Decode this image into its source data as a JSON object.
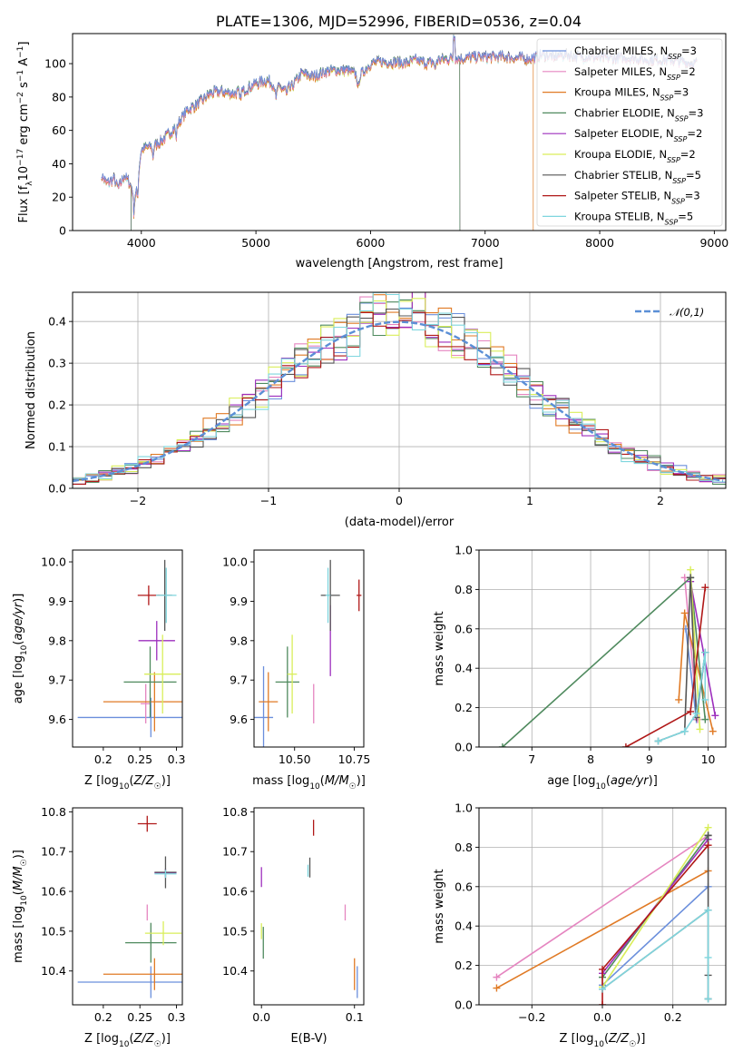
{
  "title": "PLATE=1306, MJD=52996, FIBERID=0536, z=0.04",
  "colors": {
    "Chabrier MILES": "#6b8fdc",
    "Salpeter MILES": "#e585c0",
    "Kroupa MILES": "#e07a25",
    "Chabrier ELODIE": "#4f8a5e",
    "Salpeter ELODIE": "#9d2fbd",
    "Kroupa ELODIE": "#d9ee5a",
    "Chabrier STELIB": "#555555",
    "Salpeter STELIB": "#b01818",
    "Kroupa STELIB": "#7fd6de",
    "normal": "#5b8fd6"
  },
  "chart_data": [
    {
      "id": "spectrum",
      "type": "line",
      "xlabel": "wavelength [Angstrom, rest frame]",
      "ylabel": "Flux [f_λ 10^-17 erg cm^-2 s^-1 A^-1]",
      "xlim": [
        3400,
        9100
      ],
      "ylim": [
        0,
        118
      ],
      "xticks": [
        "4000",
        "5000",
        "6000",
        "7000",
        "8000",
        "9000"
      ],
      "yticks": [
        "0",
        "20",
        "40",
        "60",
        "80",
        "100"
      ],
      "legend_position": "top-right",
      "series": [
        {
          "name": "Chabrier MILES, N_SSP=3",
          "key": "Chabrier MILES",
          "x_range": [
            3650,
            8850
          ]
        },
        {
          "name": "Salpeter MILES, N_SSP=2",
          "key": "Salpeter MILES",
          "x_range": [
            3650,
            8850
          ]
        },
        {
          "name": "Kroupa MILES, N_SSP=3",
          "key": "Kroupa MILES",
          "x_range": [
            3650,
            7420
          ]
        },
        {
          "name": "Chabrier ELODIE, N_SSP=3",
          "key": "Chabrier ELODIE",
          "x_range": [
            3910,
            6780
          ]
        },
        {
          "name": "Salpeter ELODIE, N_SSP=2",
          "key": "Salpeter ELODIE",
          "x_range": [
            3910,
            6780
          ]
        },
        {
          "name": "Kroupa ELODIE, N_SSP=2",
          "key": "Kroupa ELODIE",
          "x_range": [
            3910,
            6780
          ]
        },
        {
          "name": "Chabrier STELIB, N_SSP=5",
          "key": "Chabrier STELIB",
          "x_range": [
            3650,
            8850
          ]
        },
        {
          "name": "Salpeter STELIB, N_SSP=3",
          "key": "Salpeter STELIB",
          "x_range": [
            3650,
            8850
          ]
        },
        {
          "name": "Kroupa STELIB, N_SSP=5",
          "key": "Kroupa STELIB",
          "x_range": [
            3650,
            8850
          ]
        }
      ],
      "continuum": {
        "x": [
          3650,
          3700,
          3760,
          3800,
          3850,
          3900,
          3950,
          4000,
          4050,
          4100,
          4200,
          4300,
          4400,
          4500,
          4600,
          4700,
          4800,
          4900,
          5000,
          5100,
          5200,
          5300,
          5400,
          5500,
          5600,
          5700,
          5800,
          5900,
          6000,
          6100,
          6200,
          6300,
          6400,
          6500,
          6600,
          6700,
          6800,
          6900,
          7000,
          7100,
          7200,
          7300,
          7400,
          7500,
          7600,
          7700,
          7800,
          7900,
          8000,
          8100,
          8200,
          8300,
          8400,
          8500,
          8600,
          8700,
          8800,
          8850
        ],
        "y": [
          33,
          28,
          31,
          25,
          33,
          28,
          20,
          48,
          50,
          50,
          55,
          62,
          72,
          76,
          82,
          83,
          82,
          84,
          88,
          90,
          85,
          85,
          94,
          92,
          95,
          96,
          96,
          92,
          100,
          101,
          101,
          100,
          102,
          100,
          102,
          103,
          103,
          104,
          104,
          104,
          104,
          103,
          103,
          105,
          104,
          105,
          104,
          104,
          103,
          103,
          103,
          103,
          102,
          102,
          102,
          101,
          100,
          100
        ]
      }
    },
    {
      "id": "residuals",
      "type": "line",
      "xlabel": "(data-model)/error",
      "ylabel": "Normed distribution",
      "xlim": [
        -2.5,
        2.5
      ],
      "ylim": [
        0,
        0.47
      ],
      "xticks": [
        "−2",
        "−1",
        "0",
        "1",
        "2"
      ],
      "yticks": [
        "0.0",
        "0.1",
        "0.2",
        "0.3",
        "0.4"
      ],
      "grid": true,
      "legend_position": "top-right",
      "reference_curve": {
        "name": "𝒩(0,1)",
        "mean": 0,
        "sigma": 1
      }
    },
    {
      "id": "age-vs-Z",
      "type": "scatter",
      "xlabel": "Z [log10(Z/Z☉)]",
      "ylabel": "age [log10(age/yr)]",
      "xlim": [
        0.158,
        0.308
      ],
      "ylim": [
        9.53,
        10.03
      ],
      "xticks": [
        "0.2",
        "0.25",
        "0.3"
      ],
      "yticks": [
        "9.6",
        "9.7",
        "9.8",
        "9.9",
        "10.0"
      ],
      "points": [
        {
          "key": "Chabrier MILES",
          "x": 0.265,
          "xerr": 0.1,
          "y": 9.605,
          "yerr": 0.05
        },
        {
          "key": "Salpeter MILES",
          "x": 0.258,
          "xerr": 0.007,
          "y": 9.64,
          "yerr": 0.05
        },
        {
          "key": "Kroupa MILES",
          "x": 0.27,
          "xerr": 0.07,
          "y": 9.645,
          "yerr": 0.075
        },
        {
          "key": "Chabrier ELODIE",
          "x": 0.264,
          "xerr": 0.036,
          "y": 9.695,
          "yerr": 0.09
        },
        {
          "key": "Salpeter ELODIE",
          "x": 0.273,
          "xerr": 0.025,
          "y": 9.8,
          "yerr": 0.05
        },
        {
          "key": "Kroupa ELODIE",
          "x": 0.281,
          "xerr": 0.025,
          "y": 9.715,
          "yerr": 0.1
        },
        {
          "key": "Chabrier STELIB",
          "x": 0.284,
          "xerr": 0.01,
          "y": 9.915,
          "yerr": 0.09
        },
        {
          "key": "Salpeter STELIB",
          "x": 0.262,
          "xerr": 0.015,
          "y": 9.915,
          "yerr": 0.025
        },
        {
          "key": "Kroupa STELIB",
          "x": 0.286,
          "xerr": 0.014,
          "y": 9.915,
          "yerr": 0.07
        }
      ]
    },
    {
      "id": "age-vs-mass",
      "type": "scatter",
      "xlabel": "mass [log10(M/M☉)]",
      "ylabel": "",
      "xlim": [
        10.33,
        10.79
      ],
      "ylim": [
        9.53,
        10.03
      ],
      "xticks": [
        "10.50",
        "10.75"
      ],
      "yticks": [
        "9.6",
        "9.7",
        "9.8",
        "9.9",
        "10.0"
      ],
      "points": [
        {
          "key": "Chabrier MILES",
          "x": 10.37,
          "xerr": 0.04,
          "y": 9.605,
          "yerr": 0.13
        },
        {
          "key": "Salpeter MILES",
          "x": 10.58,
          "xerr": 0.0,
          "y": 9.64,
          "yerr": 0.05
        },
        {
          "key": "Kroupa MILES",
          "x": 10.39,
          "xerr": 0.04,
          "y": 9.645,
          "yerr": 0.075
        },
        {
          "key": "Chabrier ELODIE",
          "x": 10.47,
          "xerr": 0.05,
          "y": 9.695,
          "yerr": 0.09
        },
        {
          "key": "Salpeter ELODIE",
          "x": 10.65,
          "xerr": 0.0,
          "y": 9.8,
          "yerr": 0.09
        },
        {
          "key": "Kroupa ELODIE",
          "x": 10.49,
          "xerr": 0.02,
          "y": 9.715,
          "yerr": 0.1
        },
        {
          "key": "Chabrier STELIB",
          "x": 10.65,
          "xerr": 0.04,
          "y": 9.915,
          "yerr": 0.09
        },
        {
          "key": "Salpeter STELIB",
          "x": 10.77,
          "xerr": 0.01,
          "y": 9.915,
          "yerr": 0.04
        },
        {
          "key": "Kroupa STELIB",
          "x": 10.64,
          "xerr": 0.01,
          "y": 9.915,
          "yerr": 0.07
        }
      ]
    },
    {
      "id": "massweight-vs-age",
      "type": "line",
      "xlabel": "age [log10(age/yr)]",
      "ylabel": "mass weight",
      "xlim": [
        6.1,
        10.3
      ],
      "ylim": [
        0,
        1
      ],
      "xticks": [
        "7",
        "8",
        "9",
        "10"
      ],
      "yticks": [
        "0.0",
        "0.2",
        "0.4",
        "0.6",
        "0.8",
        "1.0"
      ],
      "grid": true,
      "series": [
        {
          "key": "Chabrier MILES",
          "x": [
            9.62,
            9.8,
            9.95
          ],
          "y": [
            0.6,
            0.14,
            0.48
          ]
        },
        {
          "key": "Salpeter MILES",
          "x": [
            9.6,
            9.82
          ],
          "y": [
            0.86,
            0.14
          ]
        },
        {
          "key": "Kroupa MILES",
          "x": [
            9.5,
            9.6,
            10.08
          ],
          "y": [
            0.24,
            0.68,
            0.08
          ]
        },
        {
          "key": "Chabrier ELODIE",
          "x": [
            6.5,
            9.7,
            9.95
          ],
          "y": [
            0.0,
            0.86,
            0.14
          ]
        },
        {
          "key": "Salpeter ELODIE",
          "x": [
            9.7,
            10.12
          ],
          "y": [
            0.84,
            0.16
          ]
        },
        {
          "key": "Kroupa ELODIE",
          "x": [
            9.7,
            9.86
          ],
          "y": [
            0.9,
            0.09
          ]
        },
        {
          "key": "Chabrier STELIB",
          "x": [
            9.15,
            9.6,
            9.7,
            9.8,
            9.95
          ],
          "y": [
            0.03,
            0.08,
            0.86,
            0.15,
            0.48
          ]
        },
        {
          "key": "Salpeter STELIB",
          "x": [
            8.6,
            9.7,
            9.95
          ],
          "y": [
            0.0,
            0.18,
            0.81
          ]
        },
        {
          "key": "Kroupa STELIB",
          "x": [
            9.15,
            9.6,
            9.8,
            9.95,
            9.95
          ],
          "y": [
            0.03,
            0.08,
            0.17,
            0.48,
            0.24
          ]
        }
      ]
    },
    {
      "id": "mass-vs-Z",
      "type": "scatter",
      "xlabel": "Z [log10(Z/Z☉)]",
      "ylabel": "mass [log10(M/M☉)]",
      "xlim": [
        0.158,
        0.308
      ],
      "ylim": [
        10.315,
        10.81
      ],
      "xticks": [
        "0.2",
        "0.25",
        "0.3"
      ],
      "yticks": [
        "10.4",
        "10.5",
        "10.6",
        "10.7",
        "10.8"
      ],
      "points": [
        {
          "key": "Chabrier MILES",
          "x": 0.265,
          "xerr": 0.1,
          "y": 10.372,
          "yerr": 0.04
        },
        {
          "key": "Salpeter MILES",
          "x": 0.26,
          "xerr": 0.0,
          "y": 10.547,
          "yerr": 0.02
        },
        {
          "key": "Kroupa MILES",
          "x": 0.27,
          "xerr": 0.07,
          "y": 10.392,
          "yerr": 0.04
        },
        {
          "key": "Chabrier ELODIE",
          "x": 0.265,
          "xerr": 0.035,
          "y": 10.471,
          "yerr": 0.05
        },
        {
          "key": "Salpeter ELODIE",
          "x": 0.285,
          "xerr": 0.015,
          "y": 10.647,
          "yerr": 0.01
        },
        {
          "key": "Kroupa ELODIE",
          "x": 0.282,
          "xerr": 0.025,
          "y": 10.495,
          "yerr": 0.03
        },
        {
          "key": "Chabrier STELIB",
          "x": 0.285,
          "xerr": 0.015,
          "y": 10.648,
          "yerr": 0.04
        },
        {
          "key": "Salpeter STELIB",
          "x": 0.26,
          "xerr": 0.013,
          "y": 10.77,
          "yerr": 0.02
        },
        {
          "key": "Kroupa STELIB",
          "x": 0.285,
          "xerr": 0.015,
          "y": 10.644,
          "yerr": 0.01
        }
      ]
    },
    {
      "id": "mass-vs-EBV",
      "type": "scatter",
      "xlabel": "E(B-V)",
      "ylabel": "",
      "xlim": [
        -0.008,
        0.11
      ],
      "ylim": [
        10.315,
        10.81
      ],
      "xticks": [
        "0.0",
        "0.1"
      ],
      "yticks": [
        "10.4",
        "10.5",
        "10.6",
        "10.7",
        "10.8"
      ],
      "points": [
        {
          "key": "Chabrier MILES",
          "x": 0.103,
          "y": 10.372,
          "yerr": 0.04
        },
        {
          "key": "Salpeter MILES",
          "x": 0.09,
          "y": 10.547,
          "yerr": 0.02
        },
        {
          "key": "Kroupa MILES",
          "x": 0.1,
          "y": 10.392,
          "yerr": 0.04
        },
        {
          "key": "Chabrier ELODIE",
          "x": 0.002,
          "y": 10.471,
          "yerr": 0.04
        },
        {
          "key": "Salpeter ELODIE",
          "x": 0.0,
          "y": 10.636,
          "yerr": 0.025
        },
        {
          "key": "Kroupa ELODIE",
          "x": 0.0,
          "y": 10.5,
          "yerr": 0.02
        },
        {
          "key": "Chabrier STELIB",
          "x": 0.052,
          "y": 10.66,
          "yerr": 0.025
        },
        {
          "key": "Salpeter STELIB",
          "x": 0.056,
          "y": 10.76,
          "yerr": 0.02
        },
        {
          "key": "Kroupa STELIB",
          "x": 0.05,
          "y": 10.652,
          "yerr": 0.015
        }
      ]
    },
    {
      "id": "massweight-vs-Z",
      "type": "line",
      "xlabel": "Z [log10(Z/Z☉)]",
      "ylabel": "mass weight",
      "xlim": [
        -0.35,
        0.35
      ],
      "ylim": [
        0,
        1
      ],
      "xticks": [
        "−0.2",
        "0.0",
        "0.2"
      ],
      "yticks": [
        "0.0",
        "0.2",
        "0.4",
        "0.6",
        "0.8",
        "1.0"
      ],
      "grid": true,
      "series": [
        {
          "key": "Chabrier MILES",
          "x": [
            0.0,
            0.3
          ],
          "y": [
            0.1,
            0.6
          ]
        },
        {
          "key": "Salpeter MILES",
          "x": [
            -0.3,
            0.3
          ],
          "y": [
            0.14,
            0.86
          ]
        },
        {
          "key": "Kroupa MILES",
          "x": [
            -0.3,
            0.3
          ],
          "y": [
            0.085,
            0.68
          ]
        },
        {
          "key": "Chabrier ELODIE",
          "x": [
            0.0,
            0.3
          ],
          "y": [
            0.14,
            0.86
          ]
        },
        {
          "key": "Salpeter ELODIE",
          "x": [
            0.0,
            0.3
          ],
          "y": [
            0.16,
            0.84
          ]
        },
        {
          "key": "Kroupa ELODIE",
          "x": [
            0.0,
            0.3
          ],
          "y": [
            0.09,
            0.9
          ]
        },
        {
          "key": "Chabrier STELIB",
          "x": [
            0.0,
            0.3,
            0.3,
            0.3,
            0.3
          ],
          "y": [
            0.08,
            0.48,
            0.86,
            0.03,
            0.15
          ]
        },
        {
          "key": "Salpeter STELIB",
          "x": [
            0.0,
            0.0,
            0.3
          ],
          "y": [
            0.0,
            0.18,
            0.81
          ]
        },
        {
          "key": "Kroupa STELIB",
          "x": [
            0.0,
            0.3,
            0.3,
            0.3
          ],
          "y": [
            0.08,
            0.48,
            0.24,
            0.03
          ]
        }
      ]
    }
  ]
}
